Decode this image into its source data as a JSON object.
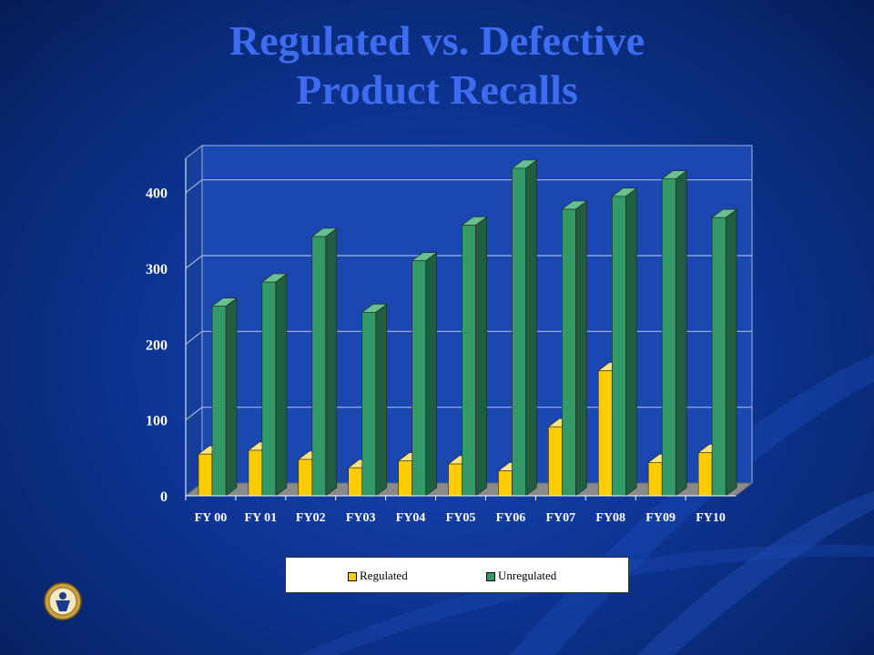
{
  "title_line1": "Regulated vs. Defective",
  "title_line2": "Product Recalls",
  "colors": {
    "regulated": "#ffcc00",
    "unregulated": "#339966",
    "title": "#3d6cf0"
  },
  "chart_data": {
    "type": "bar",
    "categories": [
      "FY 00",
      "FY 01",
      "FY02",
      "FY03",
      "FY04",
      "FY05",
      "FY06",
      "FY07",
      "FY08",
      "FY09",
      "FY10"
    ],
    "series": [
      {
        "name": "Regulated",
        "values": [
          55,
          60,
          48,
          37,
          46,
          42,
          33,
          91,
          165,
          44,
          57
        ]
      },
      {
        "name": "Unregulated",
        "values": [
          250,
          282,
          342,
          242,
          310,
          357,
          432,
          378,
          395,
          418,
          367
        ]
      }
    ],
    "yticks": [
      "0",
      "100",
      "200",
      "300",
      "400"
    ],
    "ylim": [
      0,
      450
    ],
    "legend_position": "bottom",
    "grid": true,
    "style": "3d-clustered"
  },
  "legend": {
    "regulated_label": "Regulated",
    "unregulated_label": "Unregulated"
  },
  "logo": {
    "icon": "agency-seal-icon"
  }
}
